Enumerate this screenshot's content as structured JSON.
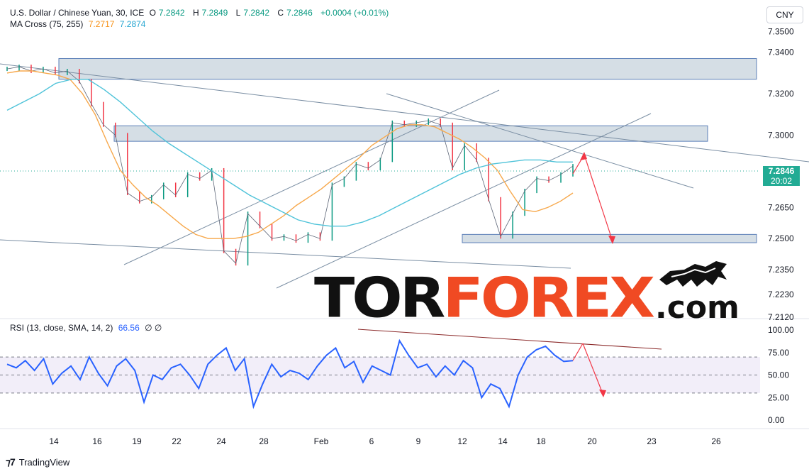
{
  "header": {
    "symbol": "U.S. Dollar / Chinese Yuan, 30, ICE",
    "ohlc": [
      {
        "k": "O",
        "v": "7.2842"
      },
      {
        "k": "H",
        "v": "7.2849"
      },
      {
        "k": "L",
        "v": "7.2842"
      },
      {
        "k": "C",
        "v": "7.2846"
      }
    ],
    "change": "+0.0004 (+0.01%)",
    "ma_label": "MA Cross (75, 255)",
    "ma_fast": "7.2717",
    "ma_slow": "7.2874",
    "currency": "CNY"
  },
  "price_tag": {
    "value": "7.2846",
    "countdown": "20:02"
  },
  "rsi_header": {
    "label": "RSI (13, close, SMA, 14, 2)",
    "value": "66.56",
    "icons": "∅ ∅"
  },
  "footer": {
    "logo_text": "TradingView"
  },
  "watermark": {
    "part1": "TOR",
    "part2": "FOREX",
    "part3": ".com"
  },
  "colors": {
    "up": "#089981",
    "down": "#f23645",
    "ma_fast": "#f7a84b",
    "ma_slow": "#4fc3d9",
    "rsi": "#2962ff",
    "zone": "#b2c2cf",
    "arrow": "#f23645",
    "trend": "#7a8ea3",
    "brand_red": "#f04a23"
  },
  "chart_data": [
    {
      "type": "line",
      "name": "price",
      "y_axis_ticks": [
        "7.3500",
        "7.3400",
        "7.3200",
        "7.3000",
        "7.2846",
        "7.2650",
        "7.2500",
        "7.2350",
        "7.2230",
        "7.2120"
      ],
      "x_ticks": [
        "14",
        "16",
        "19",
        "22",
        "24",
        "28",
        "Feb",
        "6",
        "9",
        "12",
        "14",
        "18",
        "20",
        "23",
        "26"
      ],
      "ylim": [
        7.212,
        7.355
      ],
      "close": [
        7.332,
        7.333,
        7.331,
        7.332,
        7.33,
        7.331,
        7.326,
        7.315,
        7.305,
        7.3,
        7.272,
        7.268,
        7.27,
        7.276,
        7.271,
        7.281,
        7.279,
        7.283,
        7.244,
        7.238,
        7.262,
        7.256,
        7.25,
        7.251,
        7.249,
        7.252,
        7.25,
        7.276,
        7.279,
        7.286,
        7.284,
        7.288,
        7.306,
        7.305,
        7.306,
        7.307,
        7.305,
        7.284,
        7.295,
        7.288,
        7.269,
        7.251,
        7.262,
        7.273,
        7.279,
        7.278,
        7.281,
        7.285
      ],
      "ma75": [
        7.33,
        7.331,
        7.331,
        7.33,
        7.329,
        7.327,
        7.32,
        7.31,
        7.296,
        7.283,
        7.276,
        7.27,
        7.266,
        7.261,
        7.256,
        7.252,
        7.25,
        7.25,
        7.25,
        7.251,
        7.253,
        7.257,
        7.261,
        7.266,
        7.27,
        7.274,
        7.279,
        7.284,
        7.289,
        7.295,
        7.299,
        7.303,
        7.305,
        7.305,
        7.304,
        7.301,
        7.298,
        7.294,
        7.289,
        7.283,
        7.273,
        7.264,
        7.263,
        7.265,
        7.268,
        7.272
      ],
      "ma255": [
        7.312,
        7.316,
        7.32,
        7.325,
        7.327,
        7.327,
        7.322,
        7.316,
        7.309,
        7.302,
        7.296,
        7.291,
        7.286,
        7.281,
        7.276,
        7.271,
        7.267,
        7.263,
        7.259,
        7.257,
        7.256,
        7.256,
        7.258,
        7.261,
        7.265,
        7.269,
        7.273,
        7.277,
        7.281,
        7.284,
        7.286,
        7.287,
        7.288,
        7.288,
        7.287,
        7.287
      ],
      "zones": [
        {
          "from": 7.327,
          "to": 7.337
        },
        {
          "from": 7.297,
          "to": 7.3045
        },
        {
          "from": 7.248,
          "to": 7.252
        }
      ]
    },
    {
      "type": "line",
      "name": "RSI",
      "y_axis_ticks": [
        "100.00",
        "75.00",
        "50.00",
        "25.00",
        "0.00"
      ],
      "ylim": [
        0,
        100
      ],
      "bands": [
        30,
        70
      ],
      "values": [
        62,
        58,
        66,
        55,
        68,
        40,
        52,
        60,
        45,
        70,
        52,
        38,
        60,
        68,
        55,
        20,
        50,
        45,
        58,
        62,
        50,
        35,
        62,
        72,
        80,
        55,
        68,
        15,
        40,
        62,
        48,
        55,
        52,
        45,
        60,
        72,
        80,
        58,
        65,
        42,
        60,
        55,
        50,
        88,
        72,
        58,
        62,
        48,
        60,
        50,
        66,
        58,
        25,
        40,
        35,
        15,
        50,
        70,
        78,
        82,
        72,
        65,
        66
      ]
    }
  ]
}
